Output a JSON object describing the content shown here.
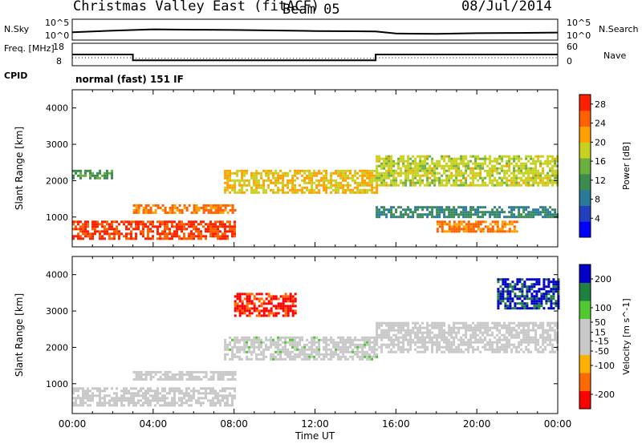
{
  "header": {
    "title": "Christmas Valley East (fitACF)",
    "beam": "Beam 05",
    "date": "08/Jul/2014"
  },
  "aux_panels": {
    "nsky_label": "N.Sky",
    "nsky_ticks": [
      "10^5",
      "10^0"
    ],
    "nsearch_label": "N.Search",
    "freq_label": "Freq. [MHz]",
    "freq_left_ticks": [
      "18",
      "8"
    ],
    "freq_right_ticks": [
      "60",
      "0"
    ],
    "nave_label": "Nave",
    "cpid_label": "CPID",
    "cpid_text": "normal (fast) 151 IF"
  },
  "colors": {
    "power_scale": [
      "#0000ff",
      "#2040c0",
      "#2a7a9a",
      "#3c8c50",
      "#6cb040",
      "#c8d020",
      "#ffa000",
      "#ff6000",
      "#ff2000"
    ],
    "velocity_scale": [
      "#ff0000",
      "#ff6a00",
      "#ffb000",
      "#c8c8c8",
      "#c8c8c8",
      "#50c830",
      "#208040",
      "#0000c8"
    ],
    "ground_scatter": "#c0c0c0"
  },
  "chart_data": [
    {
      "type": "line",
      "name": "N.Sky / N.Search",
      "x": [
        0,
        2,
        4,
        6,
        8,
        10,
        12,
        14,
        15,
        16,
        18,
        20,
        22,
        24
      ],
      "series": [
        {
          "name": "N.Sky",
          "values": [
            50,
            150,
            400,
            300,
            250,
            180,
            120,
            100,
            90,
            20,
            15,
            25,
            30,
            40
          ]
        }
      ],
      "ylabel": "N.Sky",
      "y2label": "N.Search",
      "yticks": [
        "10^0",
        "10^5"
      ]
    },
    {
      "type": "line",
      "name": "Freq / Nave",
      "x": [
        0,
        3,
        3,
        15,
        15,
        24
      ],
      "series": [
        {
          "name": "Freq",
          "values": [
            13,
            13,
            10,
            10,
            13,
            13
          ]
        },
        {
          "name": "Nave",
          "values": [
            20,
            20,
            18,
            18,
            20,
            20
          ]
        }
      ],
      "ylabel": "Freq. [MHz]",
      "y2label": "Nave",
      "ylim": [
        8,
        18
      ],
      "y2lim": [
        0,
        60
      ]
    },
    {
      "type": "heatmap",
      "name": "Power",
      "xlabel": "Time UT",
      "ylabel": "Slant Range [km]",
      "xlim": [
        0,
        24
      ],
      "ylim": [
        180,
        4500
      ],
      "xticks": [
        "00:00",
        "04:00",
        "08:00",
        "12:00",
        "16:00",
        "20:00",
        "00:00"
      ],
      "yticks": [
        1000,
        2000,
        3000,
        4000
      ],
      "colorbar_label": "Power [dB]",
      "colorbar_ticks": [
        4,
        8,
        12,
        16,
        20,
        24,
        28
      ],
      "colorbar_range": [
        0,
        30
      ],
      "bands": [
        {
          "t": [
            0,
            8
          ],
          "range": [
            400,
            900
          ],
          "value": 27
        },
        {
          "t": [
            3,
            8
          ],
          "range": [
            1100,
            1350
          ],
          "value": 24
        },
        {
          "t": [
            7.5,
            15
          ],
          "range": [
            1700,
            2300
          ],
          "value": 20
        },
        {
          "t": [
            0,
            2
          ],
          "range": [
            2100,
            2300
          ],
          "value": 12
        },
        {
          "t": [
            15,
            24
          ],
          "range": [
            1900,
            2700
          ],
          "value": 18
        },
        {
          "t": [
            15,
            24
          ],
          "range": [
            1000,
            1300
          ],
          "value": 10
        },
        {
          "t": [
            18,
            22
          ],
          "range": [
            600,
            900
          ],
          "value": 24
        }
      ]
    },
    {
      "type": "heatmap",
      "name": "Velocity",
      "xlabel": "Time UT",
      "ylabel": "Slant Range [km]",
      "xlim": [
        0,
        24
      ],
      "ylim": [
        180,
        4500
      ],
      "xticks": [
        "00:00",
        "04:00",
        "08:00",
        "12:00",
        "16:00",
        "20:00",
        "00:00"
      ],
      "yticks": [
        1000,
        2000,
        3000,
        4000
      ],
      "colorbar_label": "Velocity [m s^-1]",
      "colorbar_ticks": [
        -200,
        -100,
        -50,
        -15,
        15,
        50,
        100,
        200
      ],
      "colorbar_range": [
        -250,
        250
      ],
      "bands": [
        {
          "t": [
            0,
            8
          ],
          "range": [
            400,
            900
          ],
          "value": 0
        },
        {
          "t": [
            3,
            8
          ],
          "range": [
            1100,
            1350
          ],
          "value": 0
        },
        {
          "t": [
            7.5,
            15
          ],
          "range": [
            1700,
            2300
          ],
          "value": 30
        },
        {
          "t": [
            8,
            11
          ],
          "range": [
            2900,
            3500
          ],
          "value": -200
        },
        {
          "t": [
            15,
            24
          ],
          "range": [
            1900,
            2700
          ],
          "value": 0
        },
        {
          "t": [
            21,
            24
          ],
          "range": [
            3100,
            3900
          ],
          "value": 200
        }
      ]
    }
  ]
}
